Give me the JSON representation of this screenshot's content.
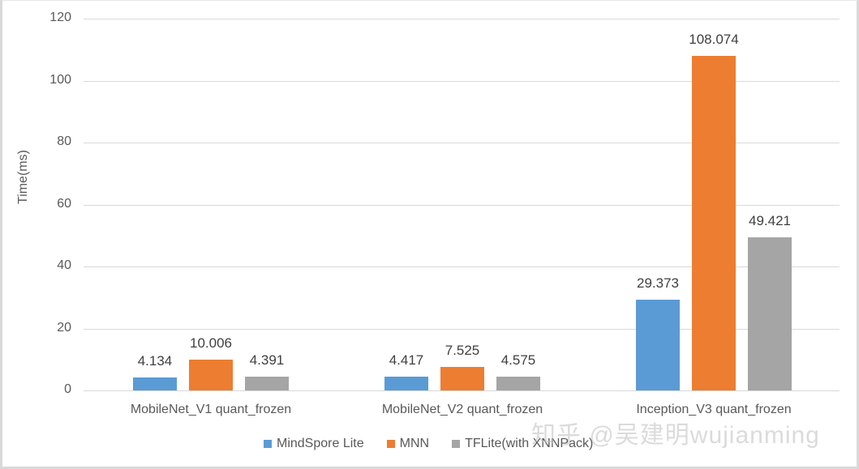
{
  "chart_data": {
    "type": "bar",
    "title": "",
    "xlabel": "",
    "ylabel": "Time(ms)",
    "ylim": [
      0,
      120
    ],
    "yticks": [
      0,
      20,
      40,
      60,
      80,
      100,
      120
    ],
    "grid": true,
    "legend_position": "bottom",
    "categories": [
      "MobileNet_V1 quant_frozen",
      "MobileNet_V2 quant_frozen",
      "Inception_V3 quant_frozen"
    ],
    "series": [
      {
        "name": "MindSpore Lite",
        "color": "#5b9bd5",
        "values": [
          4.134,
          4.417,
          29.373
        ]
      },
      {
        "name": "MNN",
        "color": "#ed7d31",
        "values": [
          10.006,
          7.525,
          108.074
        ]
      },
      {
        "name": "TFLite(with XNNPack)",
        "color": "#a5a5a5",
        "values": [
          4.391,
          4.575,
          49.421
        ]
      }
    ],
    "data_labels": [
      [
        "4.134",
        "10.006",
        "4.391"
      ],
      [
        "4.417",
        "7.525",
        "4.575"
      ],
      [
        "29.373",
        "108.074",
        "49.421"
      ]
    ]
  },
  "axis": {
    "ylabel": "Time(ms)",
    "ticks": [
      "0",
      "20",
      "40",
      "60",
      "80",
      "100",
      "120"
    ]
  },
  "legend": {
    "items": [
      {
        "label": "MindSpore Lite",
        "color": "#5b9bd5"
      },
      {
        "label": "MNN",
        "color": "#ed7d31"
      },
      {
        "label": "TFLite(with XNNPack)",
        "color": "#a5a5a5"
      }
    ]
  },
  "watermark": "知乎 @吴建明wujianming"
}
